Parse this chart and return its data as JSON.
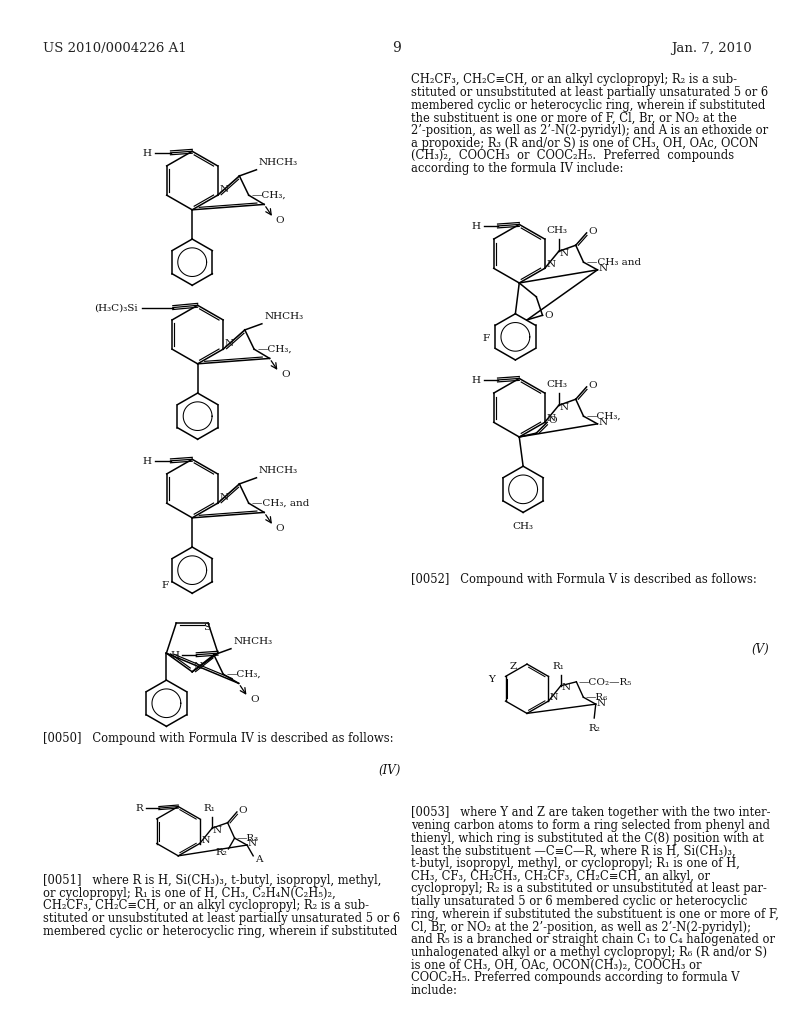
{
  "background_color": "#ffffff",
  "header_left": "US 2010/0004226 A1",
  "header_right": "Jan. 7, 2010",
  "page_number": "9",
  "top_right_text": [
    "CH₂CF₃, CH₂C≡CH, or an alkyl cyclopropyl; R₂ is a sub-",
    "stituted or unsubstituted at least partially unsaturated 5 or 6",
    "membered cyclic or heterocyclic ring, wherein if substituted",
    "the substituent is one or more of F, Cl, Br, or NO₂ at the",
    "2’-position, as well as 2’-N(2-pyridyl); and A is an ethoxide or",
    "a propoxide; R₃ (R and/or S) is one of CH₃, OH, OAc, OCON",
    "(CH₃)₂,  COOCH₃  or  COOC₂H₅.  Preferred  compounds",
    "according to the formula IV include:"
  ],
  "para_0050": "[0050]   Compound with Formula IV is described as follows:",
  "para_0051_lines": [
    "[0051]   where R is H, Si(CH₃)₃, t-butyl, isopropyl, methyl,",
    "or cyclopropyl; R₁ is one of H, CH₃, C₂H₄N(C₂H₅)₂,",
    "CH₂CF₃, CH₂C≡CH, or an alkyl cyclopropyl; R₂ is a sub-",
    "stituted or unsubstituted at least partially unsaturated 5 or 6",
    "membered cyclic or heterocyclic ring, wherein if substituted"
  ],
  "para_0052": "[0052]   Compound with Formula V is described as follows:",
  "para_0053_lines": [
    "[0053]   where Y and Z are taken together with the two inter-",
    "vening carbon atoms to form a ring selected from phenyl and",
    "thienyl, which ring is substituted at the C(8) position with at",
    "least the substituent —C≡C—R, where R is H, Si(CH₃)₃,",
    "t-butyl, isopropyl, methyl, or cyclopropyl; R₁ is one of H,",
    "CH₃, CF₃, CH₂CH₃, CH₂CF₃, CH₂C≡CH, an alkyl, or",
    "cyclopropyl; R₂ is a substituted or unsubstituted at least par-",
    "tially unsaturated 5 or 6 membered cyclic or heterocyclic",
    "ring, wherein if substituted the substituent is one or more of F,",
    "Cl, Br, or NO₂ at the 2’-position, as well as 2’-N(2-pyridyl);",
    "and R₅ is a branched or straight chain C₁ to C₄ halogenated or",
    "unhalogenated alkyl or a methyl cyclopropyl; R₆ (R and/or S)",
    "is one of CH₃, OH, OAc, OCON(CH₃)₂, COOCH₃ or",
    "COOC₂H₅. Preferred compounds according to formula V",
    "include:"
  ]
}
